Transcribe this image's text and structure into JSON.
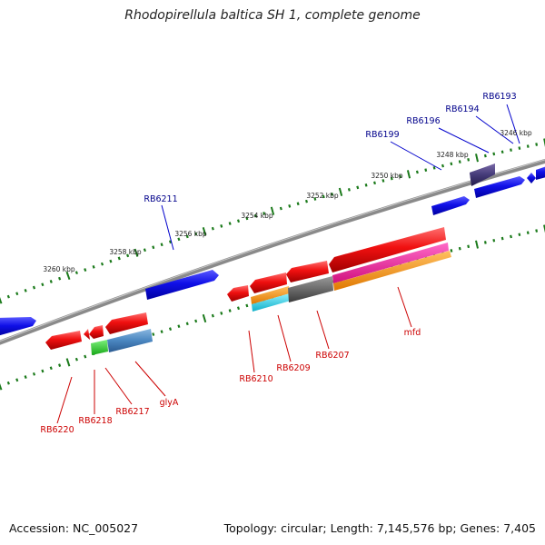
{
  "title": "Rhodopirellula baltica SH 1, complete genome",
  "footer": {
    "accession": "Accession: NC_005027",
    "summary": "Topology: circular; Length: 7,145,576 bp; Genes: 7,405"
  },
  "scale_labels": [
    "3246 kbp",
    "3248 kbp",
    "3250 kbp",
    "3252 kbp",
    "3254 kbp",
    "3256 kbp",
    "3258 kbp",
    "3260 kbp"
  ],
  "gene_labels_top": [
    "RB6193",
    "RB6194",
    "RB6196",
    "RB6199",
    "RB6211"
  ],
  "gene_labels_bottom": [
    "mfd",
    "RB6207",
    "RB6209",
    "RB6210",
    "glyA",
    "RB6217",
    "RB6218",
    "RB6220"
  ],
  "colors": {
    "forward_strand": "#0000ee",
    "reverse_strand": "#ee0000",
    "backbone": "#888888",
    "ticks": "#1b7a1b",
    "top_label": "#00008b",
    "bottom_label": "#cc0000"
  }
}
